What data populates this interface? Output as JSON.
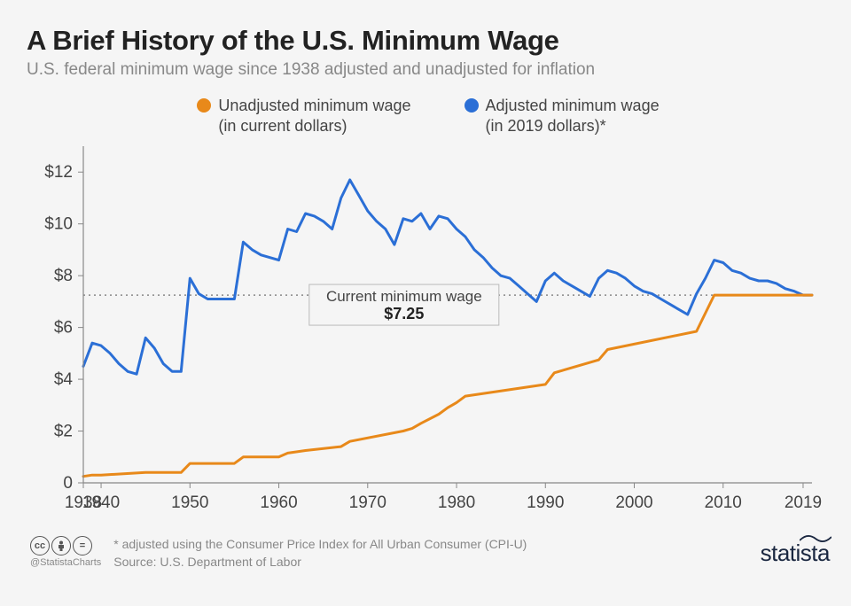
{
  "title": "A Brief History of the U.S. Minimum Wage",
  "subtitle": "U.S. federal minimum wage since 1938 adjusted and unadjusted for inflation",
  "legend": {
    "unadjusted": {
      "label_line1": "Unadjusted minimum wage",
      "label_line2": "(in current dollars)",
      "color": "#e8891a"
    },
    "adjusted": {
      "label_line1": "Adjusted minimum wage",
      "label_line2": "(in 2019 dollars)*",
      "color": "#2b6fd6"
    }
  },
  "chart": {
    "type": "line",
    "background_color": "#f5f5f5",
    "axis_color": "#888",
    "tick_color": "#888",
    "tick_label_color": "#444",
    "tick_fontsize": 19,
    "xlim": [
      1938,
      2020
    ],
    "ylim": [
      0,
      13
    ],
    "yticks": [
      0,
      2,
      4,
      6,
      8,
      10,
      12
    ],
    "ytick_labels": [
      "0",
      "$2",
      "$4",
      "$6",
      "$8",
      "$10",
      "$12"
    ],
    "xticks": [
      1938,
      1940,
      1950,
      1960,
      1970,
      1980,
      1990,
      2000,
      2010,
      2019
    ],
    "xtick_labels": [
      "1938",
      "1940",
      "1950",
      "1960",
      "1970",
      "1980",
      "1990",
      "2000",
      "2010",
      "2019"
    ],
    "reference_line": {
      "y": 7.25,
      "label_top": "Current minimum wage",
      "label_bottom": "$7.25",
      "line_color": "#888",
      "box_border": "#bbb",
      "box_bg": "#f5f5f5",
      "label_fontsize": 17
    },
    "series": {
      "unadjusted": {
        "color": "#e8891a",
        "line_width": 3,
        "years": [
          1938,
          1939,
          1940,
          1945,
          1949,
          1950,
          1955,
          1956,
          1960,
          1961,
          1963,
          1967,
          1968,
          1974,
          1975,
          1976,
          1978,
          1979,
          1980,
          1981,
          1990,
          1991,
          1996,
          1997,
          2007,
          2008,
          2009,
          2019,
          2020
        ],
        "values": [
          0.25,
          0.3,
          0.3,
          0.4,
          0.4,
          0.75,
          0.75,
          1.0,
          1.0,
          1.15,
          1.25,
          1.4,
          1.6,
          2.0,
          2.1,
          2.3,
          2.65,
          2.9,
          3.1,
          3.35,
          3.8,
          4.25,
          4.75,
          5.15,
          5.85,
          6.55,
          7.25,
          7.25,
          7.25
        ]
      },
      "adjusted": {
        "color": "#2b6fd6",
        "line_width": 3,
        "years": [
          1938,
          1939,
          1940,
          1941,
          1942,
          1943,
          1944,
          1945,
          1946,
          1947,
          1948,
          1949,
          1950,
          1951,
          1952,
          1953,
          1954,
          1955,
          1956,
          1957,
          1958,
          1959,
          1960,
          1961,
          1962,
          1963,
          1964,
          1965,
          1966,
          1967,
          1968,
          1969,
          1970,
          1971,
          1972,
          1973,
          1974,
          1975,
          1976,
          1977,
          1978,
          1979,
          1980,
          1981,
          1982,
          1983,
          1984,
          1985,
          1986,
          1987,
          1988,
          1989,
          1990,
          1991,
          1992,
          1993,
          1994,
          1995,
          1996,
          1997,
          1998,
          1999,
          2000,
          2001,
          2002,
          2003,
          2004,
          2005,
          2006,
          2007,
          2008,
          2009,
          2010,
          2011,
          2012,
          2013,
          2014,
          2015,
          2016,
          2017,
          2018,
          2019,
          2020
        ],
        "values": [
          4.5,
          5.4,
          5.3,
          5.0,
          4.6,
          4.3,
          4.2,
          5.6,
          5.2,
          4.6,
          4.3,
          4.3,
          7.9,
          7.3,
          7.1,
          7.1,
          7.1,
          7.1,
          9.3,
          9.0,
          8.8,
          8.7,
          8.6,
          9.8,
          9.7,
          10.4,
          10.3,
          10.1,
          9.8,
          11.0,
          11.7,
          11.1,
          10.5,
          10.1,
          9.8,
          9.2,
          10.2,
          10.1,
          10.4,
          9.8,
          10.3,
          10.2,
          9.8,
          9.5,
          9.0,
          8.7,
          8.3,
          8.0,
          7.9,
          7.6,
          7.3,
          7.0,
          7.8,
          8.1,
          7.8,
          7.6,
          7.4,
          7.2,
          7.9,
          8.2,
          8.1,
          7.9,
          7.6,
          7.4,
          7.3,
          7.1,
          6.9,
          6.7,
          6.5,
          7.3,
          7.9,
          8.6,
          8.5,
          8.2,
          8.1,
          7.9,
          7.8,
          7.8,
          7.7,
          7.5,
          7.4,
          7.25,
          7.25
        ]
      }
    }
  },
  "footer": {
    "note": "* adjusted using the Consumer Price Index for All Urban Consumer (CPI-U)",
    "source": "Source: U.S. Department of Labor",
    "handle": "@StatistaCharts",
    "brand": "statista"
  }
}
